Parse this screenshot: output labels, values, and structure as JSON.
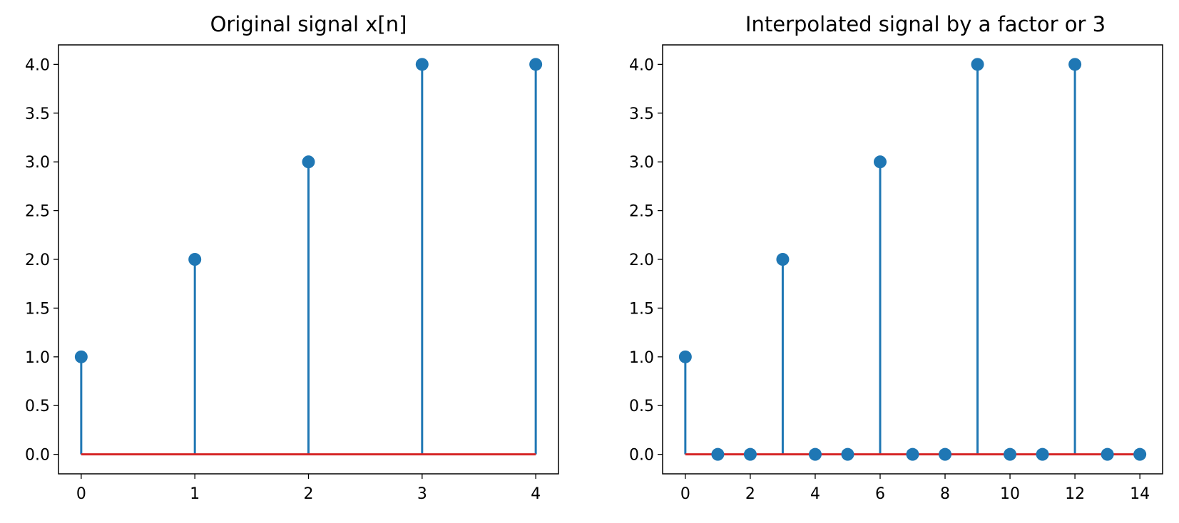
{
  "chart_data": [
    {
      "type": "stem",
      "title": "Original signal x[n]",
      "xlabel": "",
      "ylabel": "",
      "x": [
        0,
        1,
        2,
        3,
        4
      ],
      "y": [
        1,
        2,
        3,
        4,
        4
      ],
      "xlim": [
        -0.2,
        4.2
      ],
      "ylim": [
        -0.2,
        4.2
      ],
      "xticks": [
        "0",
        "1",
        "2",
        "3",
        "4"
      ],
      "yticks": [
        "0.0",
        "0.5",
        "1.0",
        "1.5",
        "2.0",
        "2.5",
        "3.0",
        "3.5",
        "4.0"
      ],
      "grid": false,
      "colors": {
        "stem": "#1f77b4",
        "baseline": "#d62728"
      }
    },
    {
      "type": "stem",
      "title": "Interpolated signal by a factor or 3",
      "xlabel": "",
      "ylabel": "",
      "x": [
        0,
        1,
        2,
        3,
        4,
        5,
        6,
        7,
        8,
        9,
        10,
        11,
        12,
        13,
        14
      ],
      "y": [
        1,
        0,
        0,
        2,
        0,
        0,
        3,
        0,
        0,
        4,
        0,
        0,
        4,
        0,
        0
      ],
      "xlim": [
        -0.7,
        14.7
      ],
      "ylim": [
        -0.2,
        4.2
      ],
      "xticks": [
        "0",
        "2",
        "4",
        "6",
        "8",
        "10",
        "12",
        "14"
      ],
      "yticks": [
        "0.0",
        "0.5",
        "1.0",
        "1.5",
        "2.0",
        "2.5",
        "3.0",
        "3.5",
        "4.0"
      ],
      "grid": false,
      "colors": {
        "stem": "#1f77b4",
        "baseline": "#d62728"
      }
    }
  ]
}
